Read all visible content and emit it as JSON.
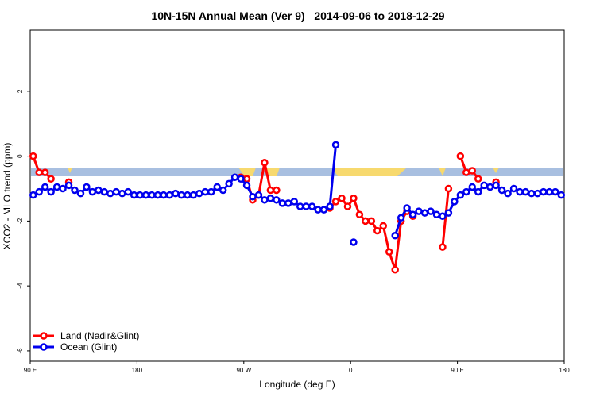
{
  "chart_data": {
    "type": "line",
    "title": "10N-15N Annual Mean (Ver 9)   2014-09-06 to 2018-12-29",
    "x_label": "Longitude (deg E)",
    "y_label": "XCO2 - MLO trend (ppm)",
    "x": [
      92.5,
      97.5,
      102.5,
      107.5,
      112.5,
      117.5,
      122.5,
      127.5,
      132.5,
      137.5,
      142.5,
      147.5,
      152.5,
      157.5,
      162.5,
      167.5,
      172.5,
      177.5,
      182.5,
      187.5,
      192.5,
      197.5,
      202.5,
      207.5,
      212.5,
      217.5,
      222.5,
      227.5,
      232.5,
      237.5,
      242.5,
      247.5,
      252.5,
      257.5,
      262.5,
      267.5,
      272.5,
      277.5,
      282.5,
      287.5,
      292.5,
      297.5,
      302.5,
      307.5,
      312.5,
      317.5,
      322.5,
      327.5,
      332.5,
      337.5,
      342.5,
      347.5,
      352.5,
      357.5,
      362.5,
      367.5,
      372.5,
      377.5,
      382.5,
      387.5,
      392.5,
      397.5,
      402.5,
      407.5,
      412.5,
      417.5,
      422.5,
      427.5,
      432.5,
      437.5,
      442.5,
      447.5,
      452.5,
      457.5,
      462.5,
      467.5,
      472.5,
      477.5,
      482.5,
      487.5,
      492.5,
      497.5,
      502.5,
      507.5,
      512.5,
      517.5,
      522.5,
      527.5,
      532.5,
      537.5
    ],
    "series": [
      {
        "name": "Land (Nadir&Glint)",
        "color": "#ff0000",
        "values": [
          0,
          -0.5,
          -0.5,
          -0.7,
          null,
          null,
          -0.8,
          null,
          null,
          null,
          null,
          null,
          null,
          null,
          null,
          null,
          null,
          null,
          null,
          null,
          null,
          null,
          null,
          null,
          null,
          null,
          null,
          null,
          null,
          null,
          null,
          null,
          null,
          null,
          null,
          -0.65,
          -0.7,
          -1.35,
          -1.2,
          -0.2,
          -1.05,
          -1.05,
          null,
          null,
          null,
          null,
          null,
          null,
          null,
          null,
          -1.6,
          -1.4,
          -1.3,
          -1.55,
          -1.3,
          -1.8,
          -2.0,
          -2.0,
          -2.3,
          -2.15,
          -2.95,
          -3.5,
          -2.0,
          -1.7,
          -1.85,
          null,
          null,
          null,
          null,
          -2.8,
          -1.0,
          null,
          0,
          -0.5,
          -0.45,
          -0.7,
          null,
          null,
          -0.8,
          null,
          null,
          null,
          null,
          null,
          null,
          null,
          null,
          null,
          null,
          null
        ]
      },
      {
        "name": "Ocean (Glint)",
        "color": "#0000ee",
        "values": [
          -1.2,
          -1.1,
          -0.95,
          -1.1,
          -0.95,
          -1.0,
          -0.9,
          -1.05,
          -1.15,
          -0.95,
          -1.1,
          -1.05,
          -1.1,
          -1.15,
          -1.1,
          -1.15,
          -1.1,
          -1.2,
          -1.2,
          -1.2,
          -1.2,
          -1.2,
          -1.2,
          -1.2,
          -1.15,
          -1.2,
          -1.2,
          -1.2,
          -1.15,
          -1.1,
          -1.1,
          -0.95,
          -1.05,
          -0.85,
          -0.65,
          -0.7,
          -0.9,
          -1.25,
          -1.2,
          -1.35,
          -1.3,
          -1.35,
          -1.45,
          -1.45,
          -1.4,
          -1.55,
          -1.55,
          -1.55,
          -1.65,
          -1.65,
          -1.55,
          0.35,
          null,
          null,
          -2.65,
          null,
          null,
          null,
          null,
          null,
          null,
          -2.45,
          -1.9,
          -1.6,
          -1.8,
          -1.7,
          -1.75,
          -1.7,
          -1.8,
          -1.85,
          -1.75,
          -1.4,
          -1.2,
          -1.1,
          -0.95,
          -1.1,
          -0.9,
          -0.95,
          -0.9,
          -1.05,
          -1.15,
          -1.0,
          -1.1,
          -1.1,
          -1.15,
          -1.15,
          -1.1,
          -1.1,
          -1.1,
          -1.2
        ]
      }
    ],
    "xlim": [
      90,
      540
    ],
    "xticks": [
      {
        "value": 90,
        "label": "90 E"
      },
      180,
      {
        "value": 270,
        "label": "90 W"
      },
      {
        "value": 360,
        "label": "0"
      },
      {
        "value": 450,
        "label": "90 E"
      },
      {
        "value": 540,
        "label": "180"
      }
    ],
    "ylim": [
      -6.32,
      3.88
    ],
    "yticks": [
      -6,
      -4,
      -2,
      0,
      2
    ],
    "legend": "bottom-left"
  }
}
